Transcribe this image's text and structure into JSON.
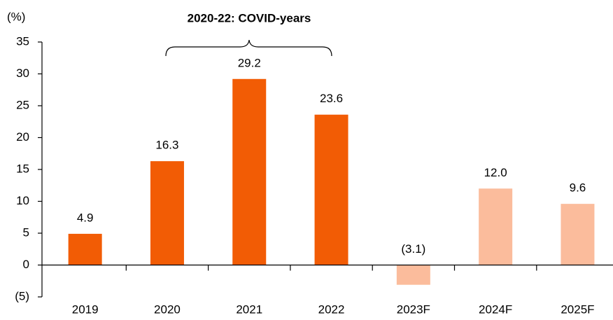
{
  "chart_data": {
    "type": "bar",
    "y_label": "(%)",
    "annotation": "2020-22: COVID-years",
    "categories": [
      "2019",
      "2020",
      "2021",
      "2022",
      "2023F",
      "2024F",
      "2025F"
    ],
    "values": [
      4.9,
      16.3,
      29.2,
      23.6,
      -3.1,
      12.0,
      9.6
    ],
    "value_labels": [
      "4.9",
      "16.3",
      "29.2",
      "23.6",
      "(3.1)",
      "12.0",
      "9.6"
    ],
    "colors": [
      "#f25c05",
      "#f25c05",
      "#f25c05",
      "#f25c05",
      "#fbbc9c",
      "#fbbc9c",
      "#fbbc9c"
    ],
    "ylim": [
      -5,
      35
    ],
    "yticks": [
      {
        "value": -5,
        "label": "(5)"
      },
      0,
      5,
      10,
      15,
      20,
      25,
      30,
      35
    ],
    "grid": false
  }
}
